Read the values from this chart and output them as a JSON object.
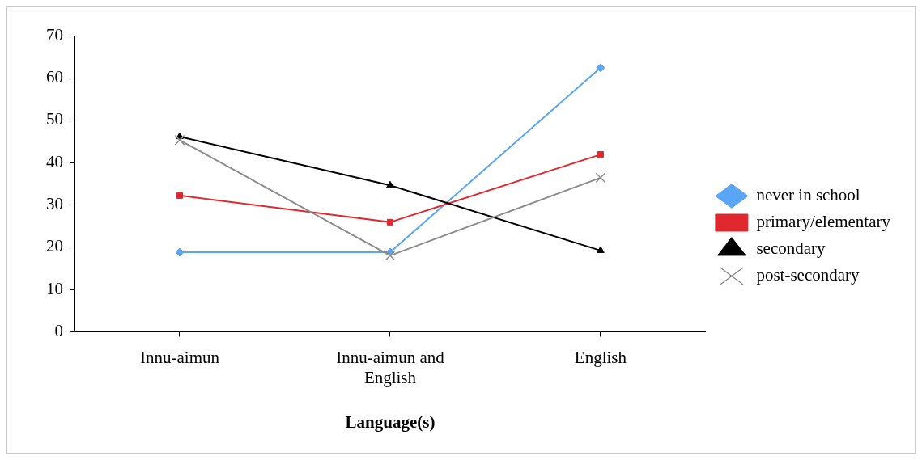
{
  "chart_data": {
    "type": "line",
    "xlabel": "Language(s)",
    "categories": [
      "Innu-aimun",
      "Innu-aimun and English",
      "English"
    ],
    "series": [
      {
        "name": "never in school",
        "color": "#5aa5f5",
        "marker": "diamond",
        "values": [
          18.8,
          18.8,
          62.4
        ]
      },
      {
        "name": "primary/elementary",
        "color": "#e0282e",
        "marker": "square",
        "values": [
          32.2,
          25.9,
          41.9
        ]
      },
      {
        "name": "secondary",
        "color": "#000000",
        "marker": "triangle",
        "values": [
          46.1,
          34.6,
          19.2
        ]
      },
      {
        "name": "post-secondary",
        "color": "#8c8c8c",
        "marker": "cross",
        "values": [
          45.3,
          18.0,
          36.4
        ]
      }
    ],
    "ylim": [
      0,
      70
    ],
    "yticks": [
      0,
      10,
      20,
      30,
      40,
      50,
      60,
      70
    ],
    "grid": false,
    "legend": "right",
    "line_style": "solid"
  }
}
